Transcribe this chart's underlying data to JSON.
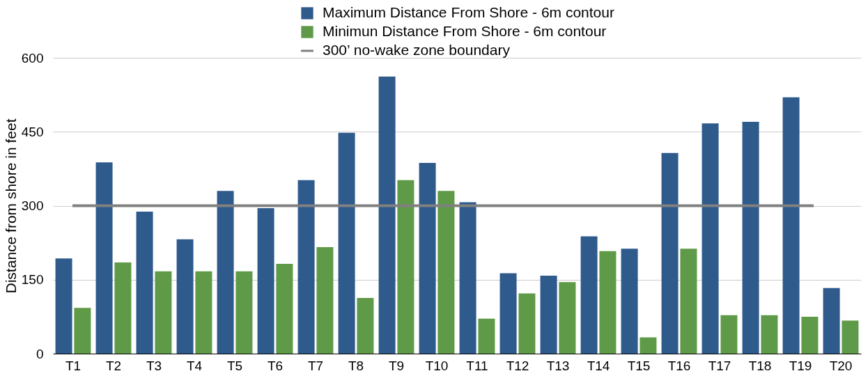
{
  "chart_data": {
    "type": "bar",
    "ylabel": "Distance from shore in feet",
    "categories": [
      "T1",
      "T2",
      "T3",
      "T4",
      "T5",
      "T6",
      "T7",
      "T8",
      "T9",
      "T10",
      "T11",
      "T12",
      "T13",
      "T14",
      "T15",
      "T16",
      "T17",
      "T18",
      "T19",
      "T20"
    ],
    "series": [
      {
        "name": "Maximum Distance From Shore - 6m contour",
        "color": "#2f5a8c",
        "values": [
          193,
          388,
          288,
          232,
          330,
          295,
          352,
          448,
          562,
          387,
          307,
          163,
          158,
          238,
          213,
          407,
          467,
          470,
          520,
          133
        ]
      },
      {
        "name": "Minimun Distance From Shore - 6m contour",
        "color": "#5f9a48",
        "values": [
          93,
          185,
          167,
          167,
          167,
          182,
          216,
          113,
          352,
          330,
          71,
          122,
          145,
          208,
          33,
          213,
          78,
          78,
          75,
          67
        ]
      }
    ],
    "ref_lines": [
      {
        "axis": "y",
        "value": 300,
        "label": "300’ no-wake zone boundary",
        "color": "#808080"
      }
    ],
    "ylim": [
      0,
      600
    ],
    "yticks": [
      0,
      150,
      300,
      450,
      600
    ],
    "grid": "y",
    "legend": "top"
  }
}
